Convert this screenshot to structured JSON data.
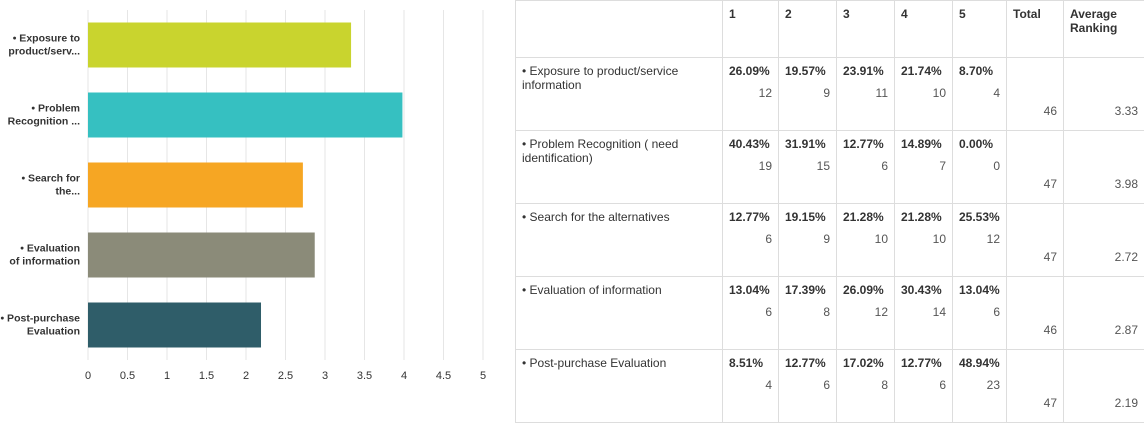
{
  "chart_data": {
    "type": "hbar",
    "categories": [
      [
        "• Exposure to",
        "product/serv..."
      ],
      [
        "• Problem",
        "Recognition ..."
      ],
      [
        "• Search for",
        "the..."
      ],
      [
        "• Evaluation",
        "of information"
      ],
      [
        "• Post-purchase",
        "Evaluation"
      ]
    ],
    "values": [
      3.33,
      3.98,
      2.72,
      2.87,
      2.19
    ],
    "colors": [
      "#c9d42e",
      "#36c0c1",
      "#f6a623",
      "#8b8b79",
      "#2f5d69"
    ],
    "xlim": [
      0,
      5
    ],
    "xticks": [
      0,
      0.5,
      1,
      1.5,
      2,
      2.5,
      3,
      3.5,
      4,
      4.5,
      5
    ],
    "grid": true
  },
  "table": {
    "header": [
      "1",
      "2",
      "3",
      "4",
      "5",
      "Total",
      "Average Ranking"
    ],
    "rows": [
      {
        "label": "• Exposure to product/service information",
        "cells": [
          [
            "26.09%",
            12
          ],
          [
            "19.57%",
            9
          ],
          [
            "23.91%",
            11
          ],
          [
            "21.74%",
            10
          ],
          [
            "8.70%",
            4
          ]
        ],
        "total": 46,
        "average": 3.33
      },
      {
        "label": "• Problem Recognition ( need identification)",
        "cells": [
          [
            "40.43%",
            19
          ],
          [
            "31.91%",
            15
          ],
          [
            "12.77%",
            6
          ],
          [
            "14.89%",
            7
          ],
          [
            "0.00%",
            0
          ]
        ],
        "total": 47,
        "average": 3.98
      },
      {
        "label": "• Search for the alternatives",
        "cells": [
          [
            "12.77%",
            6
          ],
          [
            "19.15%",
            9
          ],
          [
            "21.28%",
            10
          ],
          [
            "21.28%",
            10
          ],
          [
            "25.53%",
            12
          ]
        ],
        "total": 47,
        "average": 2.72
      },
      {
        "label": "• Evaluation of information",
        "cells": [
          [
            "13.04%",
            6
          ],
          [
            "17.39%",
            8
          ],
          [
            "26.09%",
            12
          ],
          [
            "30.43%",
            14
          ],
          [
            "13.04%",
            6
          ]
        ],
        "total": 46,
        "average": 2.87
      },
      {
        "label": "• Post-purchase Evaluation",
        "cells": [
          [
            "8.51%",
            4
          ],
          [
            "12.77%",
            6
          ],
          [
            "17.02%",
            8
          ],
          [
            "12.77%",
            6
          ],
          [
            "48.94%",
            23
          ]
        ],
        "total": 47,
        "average": 2.19
      }
    ]
  }
}
